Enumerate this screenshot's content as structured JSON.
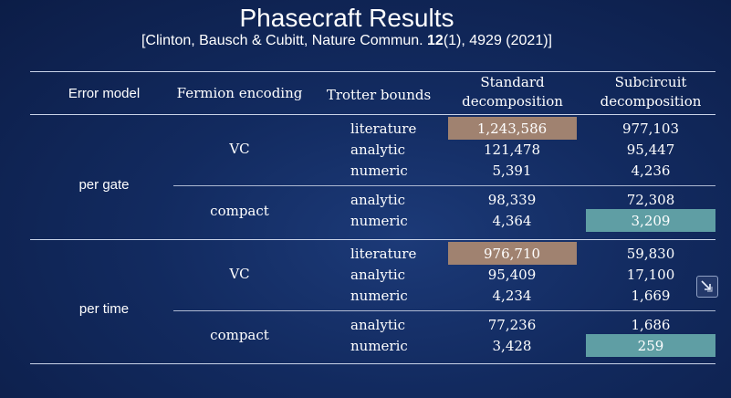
{
  "title": "Phasecraft Results",
  "citation": {
    "pre": "[Clinton, Bausch & Cubitt, Nature Commun. ",
    "volume": "12",
    "post": "(1), 4929 (2021)]"
  },
  "headers": {
    "error_model": "Error model",
    "fermion_encoding": "Fermion encoding",
    "trotter_bounds": "Trotter bounds",
    "standard_l1": "Standard",
    "standard_l2": "decomposition",
    "subcircuit_l1": "Subcircuit",
    "subcircuit_l2": "decomposition"
  },
  "groups": {
    "per_gate": "per gate",
    "per_time": "per time",
    "vc": "VC",
    "compact": "compact"
  },
  "rows": [
    {
      "bound": "literature",
      "standard": "1,243,586",
      "subcircuit": "977,103"
    },
    {
      "bound": "analytic",
      "standard": "121,478",
      "subcircuit": "95,447"
    },
    {
      "bound": "numeric",
      "standard": "5,391",
      "subcircuit": "4,236"
    },
    {
      "bound": "analytic",
      "standard": "98,339",
      "subcircuit": "72,308"
    },
    {
      "bound": "numeric",
      "standard": "4,364",
      "subcircuit": "3,209"
    },
    {
      "bound": "literature",
      "standard": "976,710",
      "subcircuit": "59,830"
    },
    {
      "bound": "analytic",
      "standard": "95,409",
      "subcircuit": "17,100"
    },
    {
      "bound": "numeric",
      "standard": "4,234",
      "subcircuit": "1,669"
    },
    {
      "bound": "analytic",
      "standard": "77,236",
      "subcircuit": "1,686"
    },
    {
      "bound": "numeric",
      "standard": "3,428",
      "subcircuit": "259"
    }
  ],
  "colors": {
    "highlight_standard": "#a08270",
    "highlight_subcircuit": "#5f9ea4"
  },
  "icons": {
    "corner": "shrink-arrow-icon"
  }
}
